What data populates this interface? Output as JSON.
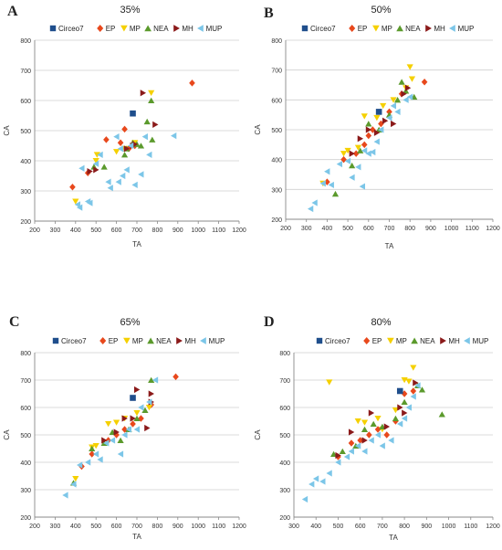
{
  "series_styles": [
    {
      "name": "Circeo7",
      "color": "#1f4e8c",
      "shape": "square"
    },
    {
      "name": "EP",
      "color": "#e8481c",
      "shape": "diamond"
    },
    {
      "name": "MP",
      "color": "#f5d000",
      "shape": "triangle-down"
    },
    {
      "name": "NEA",
      "color": "#5b9a2c",
      "shape": "triangle-up"
    },
    {
      "name": "MH",
      "color": "#8b1a1a",
      "shape": "triangle-right"
    },
    {
      "name": "MUP",
      "color": "#7cc6e8",
      "shape": "triangle-left"
    }
  ],
  "chart_data": [
    {
      "panel": "A",
      "type": "scatter",
      "title": "35%",
      "xlabel": "TA",
      "ylabel": "CA",
      "xlim": [
        200,
        1200
      ],
      "ylim": [
        200,
        800
      ],
      "xticks": [
        200,
        300,
        400,
        500,
        600,
        700,
        800,
        900,
        1000,
        1100,
        1200
      ],
      "yticks": [
        200,
        300,
        400,
        500,
        600,
        700,
        800
      ],
      "grid": true,
      "legend": "top",
      "series": [
        {
          "name": "Circeo7",
          "points": [
            [
              680,
              557
            ]
          ]
        },
        {
          "name": "EP",
          "points": [
            [
              385,
              313
            ],
            [
              460,
              360
            ],
            [
              550,
              470
            ],
            [
              620,
              460
            ],
            [
              640,
              505
            ],
            [
              660,
              440
            ],
            [
              690,
              450
            ],
            [
              970,
              658
            ]
          ]
        },
        {
          "name": "MP",
          "points": [
            [
              400,
              265
            ],
            [
              500,
              400
            ],
            [
              505,
              420
            ],
            [
              600,
              430
            ],
            [
              640,
              440
            ],
            [
              690,
              460
            ],
            [
              770,
              625
            ]
          ]
        },
        {
          "name": "NEA",
          "points": [
            [
              490,
              380
            ],
            [
              540,
              380
            ],
            [
              640,
              420
            ],
            [
              650,
              440
            ],
            [
              680,
              460
            ],
            [
              700,
              455
            ],
            [
              720,
              450
            ],
            [
              750,
              530
            ],
            [
              770,
              600
            ],
            [
              775,
              470
            ]
          ]
        },
        {
          "name": "MH",
          "points": [
            [
              470,
              365
            ],
            [
              500,
              370
            ],
            [
              650,
              440
            ],
            [
              680,
              450
            ],
            [
              690,
              455
            ],
            [
              730,
              625
            ],
            [
              790,
              520
            ]
          ]
        },
        {
          "name": "MUP",
          "points": [
            [
              410,
              255
            ],
            [
              420,
              245
            ],
            [
              430,
              375
            ],
            [
              460,
              265
            ],
            [
              470,
              260
            ],
            [
              500,
              390
            ],
            [
              520,
              420
            ],
            [
              560,
              330
            ],
            [
              570,
              310
            ],
            [
              600,
              480
            ],
            [
              610,
              330
            ],
            [
              620,
              440
            ],
            [
              630,
              350
            ],
            [
              650,
              370
            ],
            [
              670,
              450
            ],
            [
              690,
              320
            ],
            [
              720,
              355
            ],
            [
              740,
              480
            ],
            [
              760,
              420
            ],
            [
              880,
              483
            ]
          ]
        }
      ]
    },
    {
      "panel": "B",
      "type": "scatter",
      "title": "50%",
      "xlabel": "TA",
      "ylabel": "CA",
      "xlim": [
        200,
        1200
      ],
      "ylim": [
        200,
        800
      ],
      "xticks": [
        200,
        300,
        400,
        500,
        600,
        700,
        800,
        900,
        1000,
        1100,
        1200
      ],
      "yticks": [
        200,
        300,
        400,
        500,
        600,
        700,
        800
      ],
      "grid": true,
      "legend": "top",
      "series": [
        {
          "name": "Circeo7",
          "points": [
            [
              650,
              560
            ]
          ]
        },
        {
          "name": "EP",
          "points": [
            [
              400,
              325
            ],
            [
              480,
              400
            ],
            [
              540,
              420
            ],
            [
              580,
              450
            ],
            [
              600,
              480
            ],
            [
              620,
              500
            ],
            [
              660,
              520
            ],
            [
              700,
              560
            ],
            [
              760,
              620
            ],
            [
              870,
              660
            ]
          ]
        },
        {
          "name": "MP",
          "points": [
            [
              380,
              320
            ],
            [
              480,
              420
            ],
            [
              500,
              430
            ],
            [
              550,
              440
            ],
            [
              580,
              545
            ],
            [
              640,
              540
            ],
            [
              670,
              580
            ],
            [
              720,
              600
            ],
            [
              780,
              640
            ],
            [
              800,
              710
            ],
            [
              810,
              670
            ]
          ]
        },
        {
          "name": "NEA",
          "points": [
            [
              440,
              285
            ],
            [
              520,
              380
            ],
            [
              560,
              430
            ],
            [
              600,
              520
            ],
            [
              650,
              500
            ],
            [
              700,
              550
            ],
            [
              740,
              600
            ],
            [
              760,
              660
            ],
            [
              780,
              630
            ],
            [
              820,
              610
            ]
          ]
        },
        {
          "name": "MH",
          "points": [
            [
              520,
              420
            ],
            [
              560,
              470
            ],
            [
              600,
              500
            ],
            [
              640,
              490
            ],
            [
              680,
              530
            ],
            [
              720,
              520
            ],
            [
              770,
              620
            ],
            [
              790,
              640
            ]
          ]
        },
        {
          "name": "MUP",
          "points": [
            [
              320,
              235
            ],
            [
              340,
              255
            ],
            [
              380,
              320
            ],
            [
              400,
              360
            ],
            [
              420,
              315
            ],
            [
              460,
              385
            ],
            [
              500,
              395
            ],
            [
              520,
              340
            ],
            [
              550,
              375
            ],
            [
              570,
              310
            ],
            [
              580,
              430
            ],
            [
              600,
              420
            ],
            [
              620,
              425
            ],
            [
              640,
              460
            ],
            [
              660,
              500
            ],
            [
              700,
              540
            ],
            [
              720,
              580
            ],
            [
              740,
              560
            ],
            [
              780,
              600
            ],
            [
              800,
              610
            ]
          ]
        }
      ]
    },
    {
      "panel": "C",
      "type": "scatter",
      "title": "65%",
      "xlabel": "TA",
      "ylabel": "CA",
      "xlim": [
        200,
        1200
      ],
      "ylim": [
        200,
        800
      ],
      "xticks": [
        200,
        300,
        400,
        500,
        600,
        700,
        800,
        900,
        1000,
        1100,
        1200
      ],
      "yticks": [
        200,
        300,
        400,
        500,
        600,
        700,
        800
      ],
      "grid": true,
      "legend": "top",
      "series": [
        {
          "name": "Circeo7",
          "points": [
            [
              680,
              635
            ]
          ]
        },
        {
          "name": "EP",
          "points": [
            [
              430,
              385
            ],
            [
              480,
              430
            ],
            [
              560,
              480
            ],
            [
              600,
              500
            ],
            [
              640,
              520
            ],
            [
              680,
              540
            ],
            [
              720,
              560
            ],
            [
              770,
              610
            ],
            [
              890,
              712
            ]
          ]
        },
        {
          "name": "MP",
          "points": [
            [
              400,
              340
            ],
            [
              480,
              455
            ],
            [
              500,
              460
            ],
            [
              560,
              540
            ],
            [
              600,
              545
            ],
            [
              640,
              560
            ],
            [
              700,
              580
            ],
            [
              760,
              600
            ]
          ]
        },
        {
          "name": "NEA",
          "points": [
            [
              390,
              325
            ],
            [
              480,
              450
            ],
            [
              540,
              470
            ],
            [
              580,
              510
            ],
            [
              620,
              480
            ],
            [
              660,
              520
            ],
            [
              700,
              560
            ],
            [
              740,
              590
            ],
            [
              770,
              700
            ]
          ]
        },
        {
          "name": "MH",
          "points": [
            [
              540,
              480
            ],
            [
              600,
              510
            ],
            [
              640,
              560
            ],
            [
              680,
              560
            ],
            [
              700,
              665
            ],
            [
              750,
              525
            ],
            [
              770,
              620
            ],
            [
              770,
              650
            ]
          ]
        },
        {
          "name": "MUP",
          "points": [
            [
              350,
              280
            ],
            [
              390,
              320
            ],
            [
              420,
              390
            ],
            [
              460,
              400
            ],
            [
              500,
              430
            ],
            [
              520,
              410
            ],
            [
              550,
              470
            ],
            [
              580,
              480
            ],
            [
              620,
              430
            ],
            [
              640,
              500
            ],
            [
              660,
              520
            ],
            [
              700,
              520
            ],
            [
              720,
              600
            ],
            [
              760,
              620
            ],
            [
              790,
              700
            ]
          ]
        }
      ]
    },
    {
      "panel": "D",
      "type": "scatter",
      "title": "80%",
      "xlabel": "TA",
      "ylabel": "CA",
      "xlim": [
        300,
        1200
      ],
      "ylim": [
        200,
        800
      ],
      "xticks": [
        300,
        400,
        500,
        600,
        700,
        800,
        900,
        1000,
        1100,
        1200
      ],
      "yticks": [
        200,
        300,
        400,
        500,
        600,
        700,
        800
      ],
      "grid": true,
      "legend": "top",
      "series": [
        {
          "name": "Circeo7",
          "points": [
            [
              780,
              660
            ]
          ]
        },
        {
          "name": "EP",
          "points": [
            [
              500,
              420
            ],
            [
              560,
              470
            ],
            [
              600,
              480
            ],
            [
              640,
              500
            ],
            [
              680,
              520
            ],
            [
              720,
              500
            ],
            [
              760,
              550
            ],
            [
              800,
              650
            ],
            [
              840,
              660
            ]
          ]
        },
        {
          "name": "MP",
          "points": [
            [
              460,
              692
            ],
            [
              590,
              550
            ],
            [
              620,
              545
            ],
            [
              680,
              560
            ],
            [
              700,
              520
            ],
            [
              760,
              590
            ],
            [
              800,
              700
            ],
            [
              820,
              695
            ],
            [
              840,
              745
            ]
          ]
        },
        {
          "name": "NEA",
          "points": [
            [
              480,
              430
            ],
            [
              520,
              440
            ],
            [
              580,
              460
            ],
            [
              620,
              520
            ],
            [
              660,
              540
            ],
            [
              700,
              530
            ],
            [
              760,
              560
            ],
            [
              800,
              620
            ],
            [
              860,
              680
            ],
            [
              880,
              665
            ],
            [
              970,
              575
            ]
          ]
        },
        {
          "name": "MH",
          "points": [
            [
              500,
              425
            ],
            [
              560,
              510
            ],
            [
              620,
              480
            ],
            [
              650,
              580
            ],
            [
              720,
              530
            ],
            [
              780,
              600
            ],
            [
              800,
              580
            ],
            [
              850,
              690
            ]
          ]
        },
        {
          "name": "MUP",
          "points": [
            [
              350,
              265
            ],
            [
              380,
              320
            ],
            [
              400,
              340
            ],
            [
              430,
              330
            ],
            [
              460,
              360
            ],
            [
              500,
              400
            ],
            [
              540,
              420
            ],
            [
              560,
              440
            ],
            [
              590,
              460
            ],
            [
              620,
              440
            ],
            [
              650,
              480
            ],
            [
              680,
              500
            ],
            [
              700,
              460
            ],
            [
              740,
              480
            ],
            [
              780,
              540
            ],
            [
              800,
              560
            ],
            [
              820,
              600
            ],
            [
              840,
              640
            ],
            [
              860,
              680
            ]
          ]
        }
      ]
    }
  ]
}
